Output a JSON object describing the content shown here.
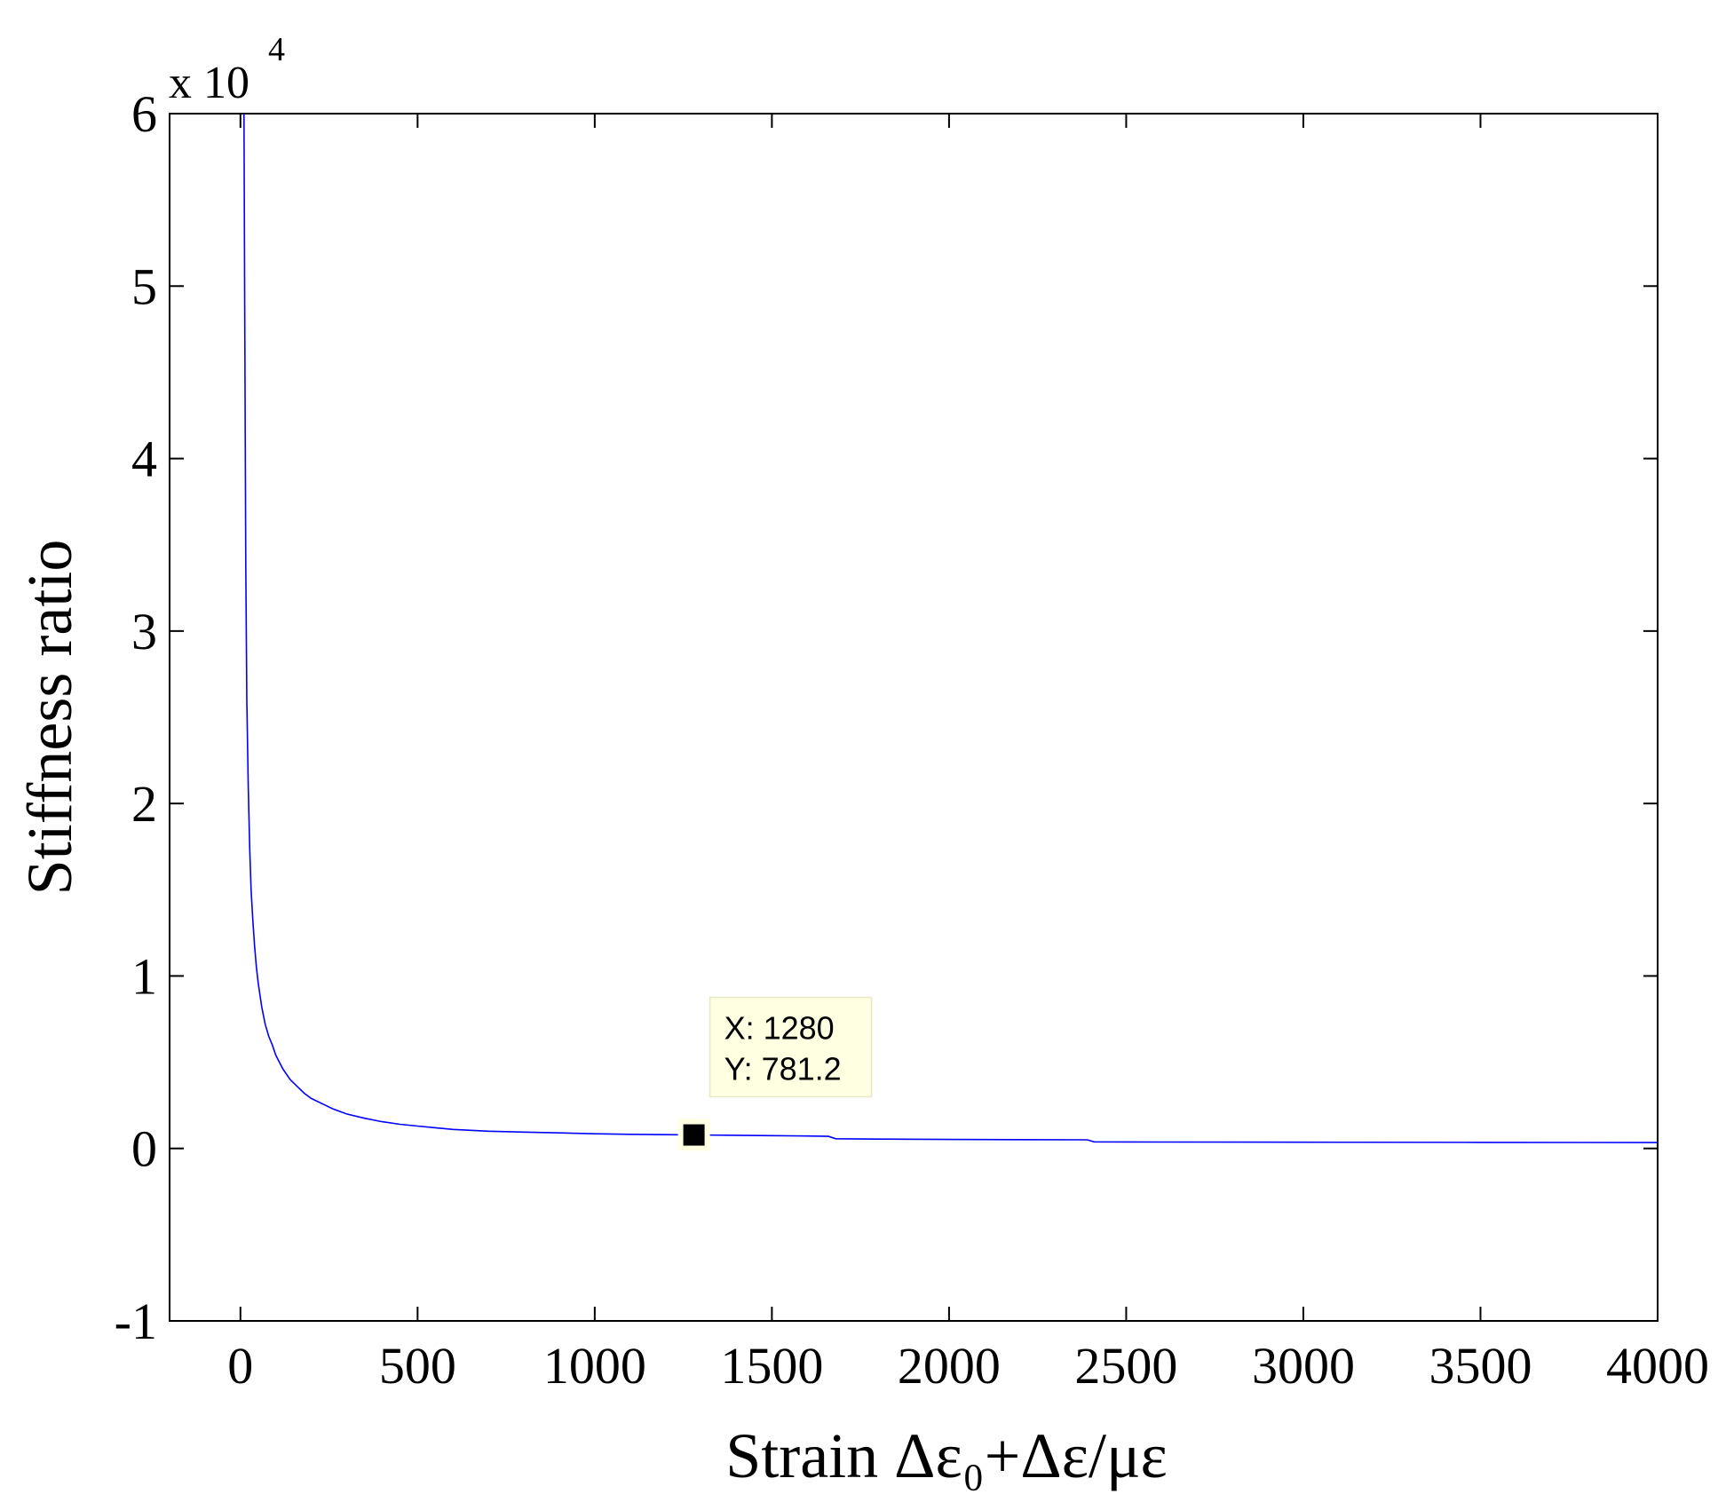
{
  "chart_data": {
    "type": "line",
    "title": "",
    "xlabel": "Strain Δε₀+Δε/με",
    "ylabel": "Stiffness ratio",
    "y_multiplier": {
      "base": "x 10",
      "exponent": "4"
    },
    "xlim": [
      -200,
      4000
    ],
    "ylim": [
      -10000,
      60000
    ],
    "x_ticks": [
      0,
      500,
      1000,
      1500,
      2000,
      2500,
      3000,
      3500,
      4000
    ],
    "y_ticks": [
      -10000,
      0,
      10000,
      20000,
      30000,
      40000,
      50000,
      60000
    ],
    "x_tick_labels": [
      "0",
      "500",
      "1000",
      "1500",
      "2000",
      "2500",
      "3000",
      "3500",
      "4000"
    ],
    "y_tick_labels": [
      "-1",
      "0",
      "1",
      "2",
      "3",
      "4",
      "5",
      "6"
    ],
    "grid": false,
    "series": [
      {
        "color": "#0000ff",
        "x": [
          10,
          12,
          15,
          18,
          22,
          26,
          30,
          35,
          40,
          45,
          50,
          60,
          70,
          80,
          90,
          100,
          110,
          120,
          140,
          160,
          180,
          200,
          230,
          260,
          300,
          350,
          400,
          450,
          500,
          550,
          600,
          650,
          700,
          800,
          900,
          1000,
          1100,
          1200,
          1280,
          1400,
          1500,
          1600,
          1660,
          1680,
          1800,
          2000,
          2200,
          2390,
          2410,
          2600,
          3000,
          3500,
          4000
        ],
        "y": [
          60000,
          49000,
          34000,
          26000,
          21000,
          17500,
          15000,
          13200,
          11700,
          10500,
          9600,
          8200,
          7200,
          6500,
          6000,
          5400,
          5000,
          4600,
          4000,
          3600,
          3200,
          2900,
          2600,
          2300,
          2000,
          1750,
          1550,
          1400,
          1300,
          1200,
          1100,
          1050,
          1000,
          950,
          900,
          850,
          820,
          800,
          781.2,
          760,
          740,
          720,
          700,
          560,
          540,
          520,
          510,
          500,
          380,
          370,
          360,
          350,
          340
        ]
      }
    ],
    "datatip": {
      "x_text": "X: 1280",
      "y_text": "Y: 781.2",
      "x": 1280,
      "y": 781.2
    }
  }
}
